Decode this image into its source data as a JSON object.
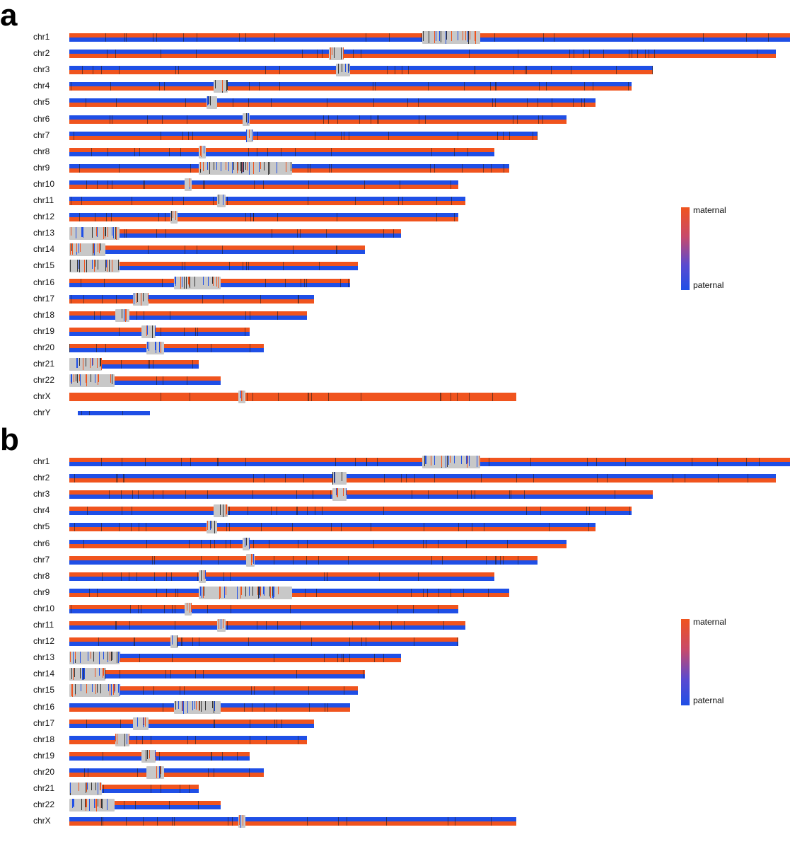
{
  "colors": {
    "maternal": "#f0541e",
    "paternal": "#1f4fe6",
    "gap": "#c8c8c8"
  },
  "legend": {
    "maternal_label": "maternal",
    "paternal_label": "paternal"
  },
  "panels": [
    {
      "letter": "a",
      "chromosomes": [
        {
          "name": "chr1",
          "top": "m",
          "rel": 1.0,
          "gaps": [
            [
              0.49,
              0.08
            ]
          ]
        },
        {
          "name": "chr2",
          "top": "p",
          "rel": 0.98,
          "gaps": [
            [
              0.36,
              0.02
            ]
          ]
        },
        {
          "name": "chr3",
          "top": "p",
          "rel": 0.81,
          "gaps": [
            [
              0.37,
              0.02
            ]
          ]
        },
        {
          "name": "chr4",
          "top": "p",
          "rel": 0.78,
          "gaps": [
            [
              0.2,
              0.02
            ]
          ]
        },
        {
          "name": "chr5",
          "top": "p",
          "rel": 0.73,
          "gaps": [
            [
              0.19,
              0.015
            ]
          ]
        },
        {
          "name": "chr6",
          "top": "p",
          "rel": 0.69,
          "gaps": [
            [
              0.24,
              0.01
            ]
          ]
        },
        {
          "name": "chr7",
          "top": "p",
          "rel": 0.65,
          "gaps": [
            [
              0.245,
              0.01
            ]
          ]
        },
        {
          "name": "chr8",
          "top": "m",
          "rel": 0.59,
          "gaps": [
            [
              0.18,
              0.008
            ]
          ]
        },
        {
          "name": "chr9",
          "top": "p",
          "rel": 0.61,
          "gaps": [
            [
              0.18,
              0.13
            ]
          ]
        },
        {
          "name": "chr10",
          "top": "p",
          "rel": 0.54,
          "gaps": [
            [
              0.16,
              0.01
            ]
          ]
        },
        {
          "name": "chr11",
          "top": "p",
          "rel": 0.55,
          "gaps": [
            [
              0.205,
              0.012
            ]
          ]
        },
        {
          "name": "chr12",
          "top": "p",
          "rel": 0.54,
          "gaps": [
            [
              0.14,
              0.01
            ]
          ]
        },
        {
          "name": "chr13",
          "top": "m",
          "rel": 0.46,
          "gaps": [
            [
              0.0,
              0.07
            ]
          ]
        },
        {
          "name": "chr14",
          "top": "m",
          "rel": 0.41,
          "gaps": [
            [
              0.0,
              0.05
            ]
          ]
        },
        {
          "name": "chr15",
          "top": "m",
          "rel": 0.4,
          "gaps": [
            [
              0.0,
              0.07
            ]
          ]
        },
        {
          "name": "chr16",
          "top": "m",
          "rel": 0.39,
          "gaps": [
            [
              0.145,
              0.065
            ]
          ]
        },
        {
          "name": "chr17",
          "top": "p",
          "rel": 0.34,
          "gaps": [
            [
              0.088,
              0.022
            ]
          ]
        },
        {
          "name": "chr18",
          "top": "m",
          "rel": 0.33,
          "gaps": [
            [
              0.064,
              0.02
            ]
          ]
        },
        {
          "name": "chr19",
          "top": "m",
          "rel": 0.25,
          "gaps": [
            [
              0.1,
              0.02
            ]
          ]
        },
        {
          "name": "chr20",
          "top": "m",
          "rel": 0.27,
          "gaps": [
            [
              0.107,
              0.025
            ]
          ]
        },
        {
          "name": "chr21",
          "top": "m",
          "rel": 0.18,
          "gaps": [
            [
              0.0,
              0.045
            ]
          ]
        },
        {
          "name": "chr22",
          "top": "m",
          "rel": 0.21,
          "gaps": [
            [
              0.0,
              0.063
            ]
          ]
        },
        {
          "name": "chrX",
          "top": "m",
          "rel": 0.62,
          "gaps": [
            [
              0.235,
              0.01
            ]
          ],
          "single": true
        },
        {
          "name": "chrY",
          "top": "p",
          "rel": 0.1,
          "gaps": [],
          "short": true
        }
      ]
    },
    {
      "letter": "b",
      "chromosomes": [
        {
          "name": "chr1",
          "top": "m",
          "rel": 1.0,
          "gaps": [
            [
              0.49,
              0.08
            ]
          ]
        },
        {
          "name": "chr2",
          "top": "p",
          "rel": 0.98,
          "gaps": [
            [
              0.365,
              0.02
            ]
          ]
        },
        {
          "name": "chr3",
          "top": "m",
          "rel": 0.81,
          "gaps": [
            [
              0.365,
              0.02
            ]
          ]
        },
        {
          "name": "chr4",
          "top": "m",
          "rel": 0.78,
          "gaps": [
            [
              0.2,
              0.02
            ]
          ]
        },
        {
          "name": "chr5",
          "top": "p",
          "rel": 0.73,
          "gaps": [
            [
              0.19,
              0.015
            ]
          ]
        },
        {
          "name": "chr6",
          "top": "p",
          "rel": 0.69,
          "gaps": [
            [
              0.24,
              0.01
            ]
          ]
        },
        {
          "name": "chr7",
          "top": "m",
          "rel": 0.65,
          "gaps": [
            [
              0.245,
              0.012
            ]
          ]
        },
        {
          "name": "chr8",
          "top": "m",
          "rel": 0.59,
          "gaps": [
            [
              0.18,
              0.008
            ]
          ]
        },
        {
          "name": "chr9",
          "top": "p",
          "rel": 0.61,
          "gaps": [
            [
              0.18,
              0.13
            ]
          ]
        },
        {
          "name": "chr10",
          "top": "m",
          "rel": 0.54,
          "gaps": [
            [
              0.16,
              0.01
            ]
          ]
        },
        {
          "name": "chr11",
          "top": "m",
          "rel": 0.55,
          "gaps": [
            [
              0.205,
              0.012
            ]
          ]
        },
        {
          "name": "chr12",
          "top": "m",
          "rel": 0.54,
          "gaps": [
            [
              0.14,
              0.01
            ]
          ]
        },
        {
          "name": "chr13",
          "top": "p",
          "rel": 0.46,
          "gaps": [
            [
              0.0,
              0.07
            ]
          ]
        },
        {
          "name": "chr14",
          "top": "m",
          "rel": 0.41,
          "gaps": [
            [
              0.0,
              0.05
            ]
          ]
        },
        {
          "name": "chr15",
          "top": "m",
          "rel": 0.4,
          "gaps": [
            [
              0.0,
              0.07
            ]
          ]
        },
        {
          "name": "chr16",
          "top": "p",
          "rel": 0.39,
          "gaps": [
            [
              0.145,
              0.065
            ]
          ]
        },
        {
          "name": "chr17",
          "top": "m",
          "rel": 0.34,
          "gaps": [
            [
              0.088,
              0.022
            ]
          ]
        },
        {
          "name": "chr18",
          "top": "p",
          "rel": 0.33,
          "gaps": [
            [
              0.064,
              0.02
            ]
          ]
        },
        {
          "name": "chr19",
          "top": "m",
          "rel": 0.25,
          "gaps": [
            [
              0.1,
              0.02
            ]
          ]
        },
        {
          "name": "chr20",
          "top": "p",
          "rel": 0.27,
          "gaps": [
            [
              0.107,
              0.025
            ]
          ]
        },
        {
          "name": "chr21",
          "top": "m",
          "rel": 0.18,
          "gaps": [
            [
              0.0,
              0.045
            ]
          ]
        },
        {
          "name": "chr22",
          "top": "m",
          "rel": 0.21,
          "gaps": [
            [
              0.0,
              0.063
            ]
          ]
        },
        {
          "name": "chrX",
          "top": "p",
          "rel": 0.62,
          "gaps": [
            [
              0.235,
              0.01
            ]
          ]
        }
      ]
    }
  ]
}
